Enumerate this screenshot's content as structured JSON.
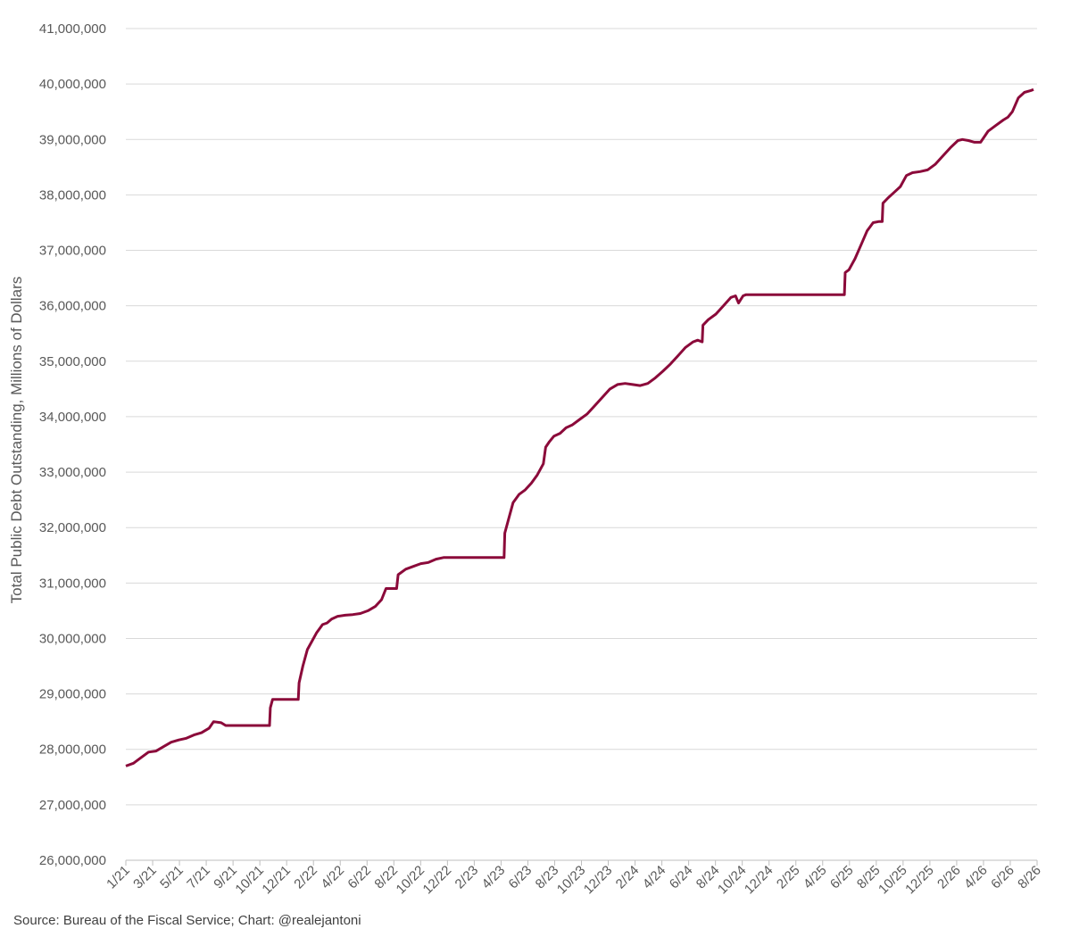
{
  "chart_data": {
    "type": "line",
    "title": "",
    "xlabel": "",
    "ylabel": "Total Public Debt Outstanding, Millions of Dollars",
    "ylim": [
      26000000,
      41000000
    ],
    "y_ticks": [
      {
        "value": 26000000,
        "label": "26,000,000"
      },
      {
        "value": 27000000,
        "label": "27,000,000"
      },
      {
        "value": 28000000,
        "label": "28,000,000"
      },
      {
        "value": 29000000,
        "label": "29,000,000"
      },
      {
        "value": 30000000,
        "label": "30,000,000"
      },
      {
        "value": 31000000,
        "label": "31,000,000"
      },
      {
        "value": 32000000,
        "label": "32,000,000"
      },
      {
        "value": 33000000,
        "label": "33,000,000"
      },
      {
        "value": 34000000,
        "label": "34,000,000"
      },
      {
        "value": 35000000,
        "label": "35,000,000"
      },
      {
        "value": 36000000,
        "label": "36,000,000"
      },
      {
        "value": 37000000,
        "label": "37,000,000"
      },
      {
        "value": 38000000,
        "label": "38,000,000"
      },
      {
        "value": 39000000,
        "label": "39,000,000"
      },
      {
        "value": 40000000,
        "label": "40,000,000"
      },
      {
        "value": 41000000,
        "label": "41,000,000"
      }
    ],
    "x_tick_labels": [
      "1/21",
      "3/21",
      "5/21",
      "7/21",
      "9/21",
      "10/21",
      "12/21",
      "2/22",
      "4/22",
      "6/22",
      "8/22",
      "10/22",
      "12/22",
      "2/23",
      "4/23",
      "6/23",
      "8/23",
      "10/23",
      "12/23",
      "2/24",
      "4/24",
      "6/24",
      "8/24",
      "10/24",
      "12/24",
      "2/25",
      "4/25",
      "6/25",
      "8/25",
      "10/25",
      "12/25",
      "2/26",
      "4/26",
      "6/26",
      "8/26"
    ],
    "grid": "horizontal",
    "legend": "none",
    "series": [
      {
        "color": "#8B0A3A",
        "points": [
          [
            0.0,
            27700000
          ],
          [
            0.5,
            27750000
          ],
          [
            1.0,
            27850000
          ],
          [
            1.5,
            27950000
          ],
          [
            2.0,
            27970000
          ],
          [
            2.5,
            28050000
          ],
          [
            3.0,
            28130000
          ],
          [
            3.5,
            28170000
          ],
          [
            4.0,
            28200000
          ],
          [
            4.5,
            28260000
          ],
          [
            5.0,
            28300000
          ],
          [
            5.5,
            28380000
          ],
          [
            5.8,
            28500000
          ],
          [
            6.3,
            28480000
          ],
          [
            6.6,
            28430000
          ],
          [
            7.5,
            28430000
          ],
          [
            8.5,
            28430000
          ],
          [
            9.3,
            28430000
          ],
          [
            9.5,
            28430000
          ],
          [
            9.55,
            28750000
          ],
          [
            9.7,
            28900000
          ],
          [
            10.5,
            28900000
          ],
          [
            11.2,
            28900000
          ],
          [
            11.4,
            28900000
          ],
          [
            11.45,
            29200000
          ],
          [
            11.7,
            29500000
          ],
          [
            12.0,
            29800000
          ],
          [
            12.3,
            29950000
          ],
          [
            12.6,
            30100000
          ],
          [
            13.0,
            30250000
          ],
          [
            13.3,
            30280000
          ],
          [
            13.6,
            30350000
          ],
          [
            14.0,
            30400000
          ],
          [
            14.5,
            30420000
          ],
          [
            15.0,
            30430000
          ],
          [
            15.5,
            30450000
          ],
          [
            16.0,
            30500000
          ],
          [
            16.5,
            30580000
          ],
          [
            16.9,
            30700000
          ],
          [
            17.2,
            30900000
          ],
          [
            17.7,
            30900000
          ],
          [
            17.9,
            30900000
          ],
          [
            18.0,
            31150000
          ],
          [
            18.5,
            31250000
          ],
          [
            19.0,
            31300000
          ],
          [
            19.5,
            31350000
          ],
          [
            20.0,
            31370000
          ],
          [
            20.5,
            31430000
          ],
          [
            21.0,
            31460000
          ],
          [
            22.0,
            31460000
          ],
          [
            23.0,
            31460000
          ],
          [
            24.0,
            31460000
          ],
          [
            24.8,
            31460000
          ],
          [
            25.0,
            31460000
          ],
          [
            25.05,
            31900000
          ],
          [
            25.3,
            32150000
          ],
          [
            25.6,
            32450000
          ],
          [
            26.0,
            32600000
          ],
          [
            26.4,
            32680000
          ],
          [
            26.8,
            32800000
          ],
          [
            27.2,
            32950000
          ],
          [
            27.6,
            33150000
          ],
          [
            27.75,
            33450000
          ],
          [
            28.0,
            33550000
          ],
          [
            28.3,
            33650000
          ],
          [
            28.7,
            33700000
          ],
          [
            29.1,
            33800000
          ],
          [
            29.5,
            33850000
          ],
          [
            30.0,
            33950000
          ],
          [
            30.5,
            34050000
          ],
          [
            31.0,
            34200000
          ],
          [
            31.5,
            34350000
          ],
          [
            32.0,
            34500000
          ],
          [
            32.5,
            34580000
          ],
          [
            33.0,
            34600000
          ],
          [
            33.5,
            34580000
          ],
          [
            34.0,
            34560000
          ],
          [
            34.5,
            34600000
          ],
          [
            35.0,
            34700000
          ],
          [
            35.5,
            34820000
          ],
          [
            36.0,
            34950000
          ],
          [
            36.5,
            35100000
          ],
          [
            37.0,
            35250000
          ],
          [
            37.5,
            35350000
          ],
          [
            37.8,
            35380000
          ],
          [
            38.1,
            35350000
          ],
          [
            38.15,
            35650000
          ],
          [
            38.5,
            35750000
          ],
          [
            39.0,
            35850000
          ],
          [
            39.5,
            36000000
          ],
          [
            40.0,
            36150000
          ],
          [
            40.3,
            36180000
          ],
          [
            40.5,
            36050000
          ],
          [
            40.8,
            36180000
          ],
          [
            41.0,
            36200000
          ],
          [
            42.0,
            36200000
          ],
          [
            43.0,
            36200000
          ],
          [
            44.0,
            36200000
          ],
          [
            45.0,
            36200000
          ],
          [
            46.0,
            36200000
          ],
          [
            47.0,
            36200000
          ],
          [
            47.5,
            36200000
          ],
          [
            47.55,
            36600000
          ],
          [
            47.8,
            36650000
          ],
          [
            48.2,
            36850000
          ],
          [
            48.6,
            37100000
          ],
          [
            49.0,
            37350000
          ],
          [
            49.4,
            37500000
          ],
          [
            49.8,
            37520000
          ],
          [
            50.0,
            37520000
          ],
          [
            50.05,
            37850000
          ],
          [
            50.4,
            37950000
          ],
          [
            50.8,
            38050000
          ],
          [
            51.2,
            38150000
          ],
          [
            51.6,
            38350000
          ],
          [
            52.0,
            38400000
          ],
          [
            52.5,
            38420000
          ],
          [
            53.0,
            38450000
          ],
          [
            53.5,
            38550000
          ],
          [
            54.0,
            38700000
          ],
          [
            54.5,
            38850000
          ],
          [
            55.0,
            38980000
          ],
          [
            55.3,
            39000000
          ],
          [
            55.7,
            38980000
          ],
          [
            56.1,
            38950000
          ],
          [
            56.5,
            38950000
          ],
          [
            57.0,
            39150000
          ],
          [
            57.5,
            39250000
          ],
          [
            58.0,
            39350000
          ],
          [
            58.3,
            39400000
          ],
          [
            58.6,
            39500000
          ],
          [
            59.0,
            39750000
          ],
          [
            59.4,
            39850000
          ],
          [
            59.8,
            39880000
          ],
          [
            60.0,
            39900000
          ]
        ]
      }
    ],
    "source": "Source: Bureau of the Fiscal Service; Chart: @realejantoni"
  }
}
